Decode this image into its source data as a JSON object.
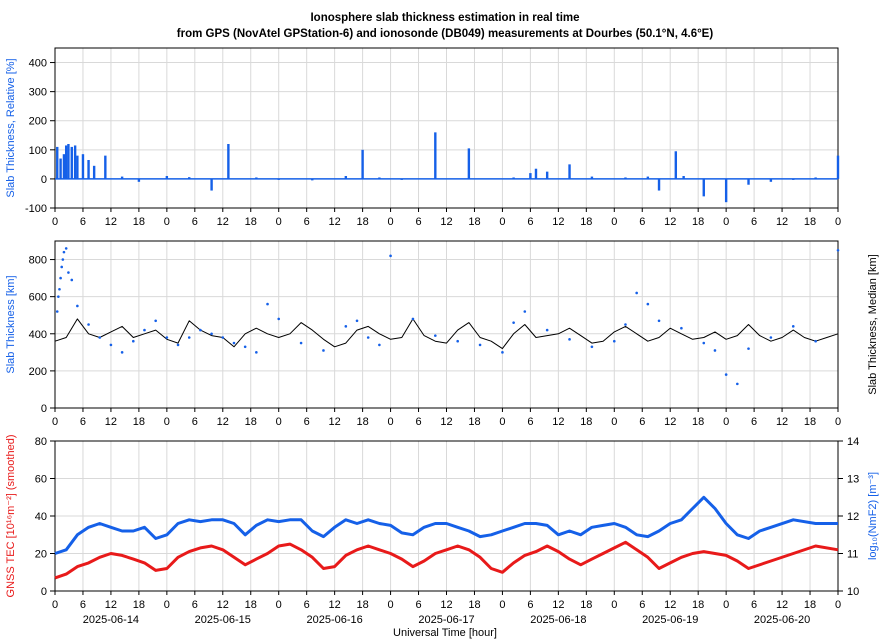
{
  "title_line1": "Ionosphere slab thickness estimation in real time",
  "title_line2": "from GPS (NovAtel GPStation-6) and ionosonde (DB049) measurements at Dourbes (50.1°N, 4.6°E)",
  "x_axis_label": "Universal Time [hour]",
  "hour_ticks": [
    "0",
    "6",
    "12",
    "18"
  ],
  "final_tick": "0",
  "dates": [
    "2025-06-14",
    "2025-06-15",
    "2025-06-16",
    "2025-06-17",
    "2025-06-18",
    "2025-06-19",
    "2025-06-20"
  ],
  "colors": {
    "blue": "#1560e8",
    "red": "#e81a1a",
    "black": "#000000",
    "grid": "#d9d9d9"
  },
  "chart_data": [
    {
      "type": "bar",
      "id": "relative",
      "ylabel": "Slab Thickness, Relative [%]",
      "ylim": [
        -100,
        450
      ],
      "yticks": [
        -100,
        0,
        100,
        200,
        300,
        400
      ],
      "xlim_days": [
        0,
        7
      ],
      "grid": true,
      "series": [
        {
          "color": "blue",
          "x": [
            0.02,
            0.05,
            0.08,
            0.1,
            0.12,
            0.15,
            0.18,
            0.2,
            0.25,
            0.3,
            0.35,
            0.45,
            0.6,
            0.75,
            1.0,
            1.2,
            1.4,
            1.55,
            1.8,
            2.0,
            2.3,
            2.6,
            2.75,
            2.9,
            3.1,
            3.4,
            3.7,
            4.1,
            4.25,
            4.3,
            4.4,
            4.6,
            4.8,
            5.1,
            5.3,
            5.4,
            5.55,
            5.62,
            5.8,
            6.0,
            6.2,
            6.4,
            6.6,
            6.8,
            7.0
          ],
          "values": [
            110,
            70,
            85,
            115,
            120,
            110,
            115,
            80,
            85,
            65,
            45,
            80,
            8,
            -10,
            10,
            6,
            -40,
            120,
            5,
            0,
            -5,
            10,
            100,
            5,
            0,
            160,
            105,
            5,
            20,
            35,
            25,
            50,
            8,
            5,
            8,
            -40,
            95,
            10,
            -60,
            -80,
            -20,
            -10,
            0,
            5,
            80
          ]
        }
      ]
    },
    {
      "type": "scatter",
      "id": "slab",
      "ylabel": "Slab Thickness [km]",
      "ylabel_right": "Slab Thickness, Median [km]",
      "ylim": [
        0,
        900
      ],
      "yticks": [
        0,
        200,
        400,
        600,
        800
      ],
      "xlim_days": [
        0,
        7
      ],
      "grid": true,
      "series": [
        {
          "color": "black",
          "kind": "line",
          "x": [
            0.0,
            0.1,
            0.2,
            0.3,
            0.4,
            0.5,
            0.6,
            0.7,
            0.8,
            0.9,
            1.0,
            1.1,
            1.2,
            1.3,
            1.4,
            1.5,
            1.6,
            1.7,
            1.8,
            1.9,
            2.0,
            2.1,
            2.2,
            2.3,
            2.4,
            2.5,
            2.6,
            2.7,
            2.8,
            2.9,
            3.0,
            3.1,
            3.2,
            3.3,
            3.4,
            3.5,
            3.6,
            3.7,
            3.8,
            3.9,
            4.0,
            4.1,
            4.2,
            4.3,
            4.4,
            4.5,
            4.6,
            4.7,
            4.8,
            4.9,
            5.0,
            5.1,
            5.2,
            5.3,
            5.4,
            5.5,
            5.6,
            5.7,
            5.8,
            5.9,
            6.0,
            6.1,
            6.2,
            6.3,
            6.4,
            6.5,
            6.6,
            6.7,
            6.8,
            6.9,
            7.0
          ],
          "values": [
            360,
            380,
            480,
            400,
            380,
            410,
            440,
            380,
            400,
            420,
            370,
            350,
            470,
            420,
            390,
            380,
            330,
            400,
            430,
            400,
            380,
            400,
            460,
            420,
            370,
            330,
            350,
            420,
            440,
            400,
            370,
            380,
            480,
            390,
            360,
            350,
            420,
            460,
            380,
            360,
            320,
            400,
            450,
            380,
            390,
            400,
            430,
            390,
            350,
            360,
            410,
            440,
            400,
            360,
            380,
            430,
            400,
            370,
            380,
            410,
            370,
            390,
            450,
            390,
            360,
            380,
            420,
            380,
            360,
            380,
            400
          ]
        },
        {
          "color": "blue",
          "kind": "points",
          "x": [
            0.02,
            0.03,
            0.04,
            0.05,
            0.06,
            0.07,
            0.08,
            0.1,
            0.12,
            0.15,
            0.2,
            0.3,
            0.4,
            0.5,
            0.6,
            0.7,
            0.8,
            0.9,
            1.0,
            1.1,
            1.2,
            1.3,
            1.4,
            1.5,
            1.6,
            1.7,
            1.8,
            1.9,
            2.0,
            2.2,
            2.4,
            2.6,
            2.7,
            2.8,
            2.9,
            3.0,
            3.2,
            3.4,
            3.6,
            3.8,
            4.0,
            4.1,
            4.2,
            4.4,
            4.6,
            4.8,
            5.0,
            5.1,
            5.2,
            5.3,
            5.4,
            5.6,
            5.8,
            5.9,
            6.0,
            6.1,
            6.2,
            6.4,
            6.6,
            6.8,
            7.0
          ],
          "values": [
            520,
            600,
            640,
            700,
            760,
            800,
            840,
            860,
            730,
            690,
            550,
            450,
            380,
            340,
            300,
            360,
            420,
            470,
            380,
            340,
            380,
            420,
            400,
            380,
            350,
            330,
            300,
            560,
            480,
            350,
            310,
            440,
            470,
            380,
            340,
            820,
            480,
            390,
            360,
            340,
            300,
            460,
            520,
            420,
            370,
            330,
            360,
            450,
            620,
            560,
            470,
            430,
            350,
            310,
            180,
            130,
            320,
            380,
            440,
            360,
            850
          ]
        }
      ]
    },
    {
      "type": "line",
      "id": "tec",
      "ylabel": "GNSS TEC [10¹⁶m⁻²] (smoothed)",
      "ylabel_right": "log₁₀(NmF2) [m⁻³]",
      "ylim": [
        0,
        80
      ],
      "yticks": [
        0,
        20,
        40,
        60,
        80
      ],
      "ylim_right": [
        10,
        14
      ],
      "yticks_right": [
        10,
        11,
        12,
        13,
        14
      ],
      "xlim_days": [
        0,
        7
      ],
      "grid": true,
      "series": [
        {
          "color": "red",
          "axis": "left",
          "x": [
            0.0,
            0.1,
            0.2,
            0.3,
            0.4,
            0.5,
            0.6,
            0.7,
            0.8,
            0.9,
            1.0,
            1.1,
            1.2,
            1.3,
            1.4,
            1.5,
            1.6,
            1.7,
            1.8,
            1.9,
            2.0,
            2.1,
            2.2,
            2.3,
            2.4,
            2.5,
            2.6,
            2.7,
            2.8,
            2.9,
            3.0,
            3.1,
            3.2,
            3.3,
            3.4,
            3.5,
            3.6,
            3.7,
            3.8,
            3.9,
            4.0,
            4.1,
            4.2,
            4.3,
            4.4,
            4.5,
            4.6,
            4.7,
            4.8,
            4.9,
            5.0,
            5.1,
            5.2,
            5.3,
            5.4,
            5.5,
            5.6,
            5.7,
            5.8,
            5.9,
            6.0,
            6.1,
            6.2,
            6.4,
            6.6,
            6.8,
            7.0
          ],
          "values": [
            7,
            9,
            13,
            15,
            18,
            20,
            19,
            17,
            15,
            11,
            12,
            18,
            21,
            23,
            24,
            22,
            18,
            14,
            17,
            20,
            24,
            25,
            22,
            18,
            12,
            13,
            19,
            22,
            24,
            22,
            20,
            17,
            13,
            16,
            20,
            22,
            24,
            22,
            18,
            12,
            10,
            15,
            19,
            21,
            24,
            21,
            17,
            14,
            17,
            20,
            23,
            26,
            22,
            18,
            12,
            15,
            18,
            20,
            21,
            20,
            19,
            16,
            12,
            16,
            20,
            24,
            22
          ]
        },
        {
          "color": "blue",
          "axis": "right",
          "x": [
            0.0,
            0.1,
            0.2,
            0.3,
            0.4,
            0.5,
            0.6,
            0.7,
            0.8,
            0.9,
            1.0,
            1.1,
            1.2,
            1.3,
            1.4,
            1.5,
            1.6,
            1.7,
            1.8,
            1.9,
            2.0,
            2.1,
            2.2,
            2.3,
            2.4,
            2.5,
            2.6,
            2.7,
            2.8,
            2.9,
            3.0,
            3.1,
            3.2,
            3.3,
            3.4,
            3.5,
            3.6,
            3.7,
            3.8,
            3.9,
            4.0,
            4.1,
            4.2,
            4.3,
            4.4,
            4.5,
            4.6,
            4.7,
            4.8,
            4.9,
            5.0,
            5.1,
            5.2,
            5.3,
            5.4,
            5.5,
            5.6,
            5.7,
            5.8,
            5.9,
            6.0,
            6.1,
            6.2,
            6.3,
            6.4,
            6.6,
            6.8,
            7.0
          ],
          "values": [
            11.0,
            11.1,
            11.5,
            11.7,
            11.8,
            11.7,
            11.6,
            11.6,
            11.7,
            11.4,
            11.5,
            11.8,
            11.9,
            11.85,
            11.9,
            11.9,
            11.8,
            11.5,
            11.75,
            11.9,
            11.85,
            11.9,
            11.9,
            11.6,
            11.45,
            11.7,
            11.9,
            11.8,
            11.9,
            11.8,
            11.75,
            11.55,
            11.5,
            11.7,
            11.8,
            11.8,
            11.7,
            11.6,
            11.45,
            11.5,
            11.6,
            11.7,
            11.8,
            11.8,
            11.75,
            11.5,
            11.6,
            11.5,
            11.7,
            11.75,
            11.8,
            11.7,
            11.5,
            11.45,
            11.6,
            11.8,
            11.9,
            12.2,
            12.5,
            12.2,
            11.8,
            11.5,
            11.4,
            11.6,
            11.7,
            11.9,
            11.8,
            11.8
          ]
        }
      ]
    }
  ]
}
